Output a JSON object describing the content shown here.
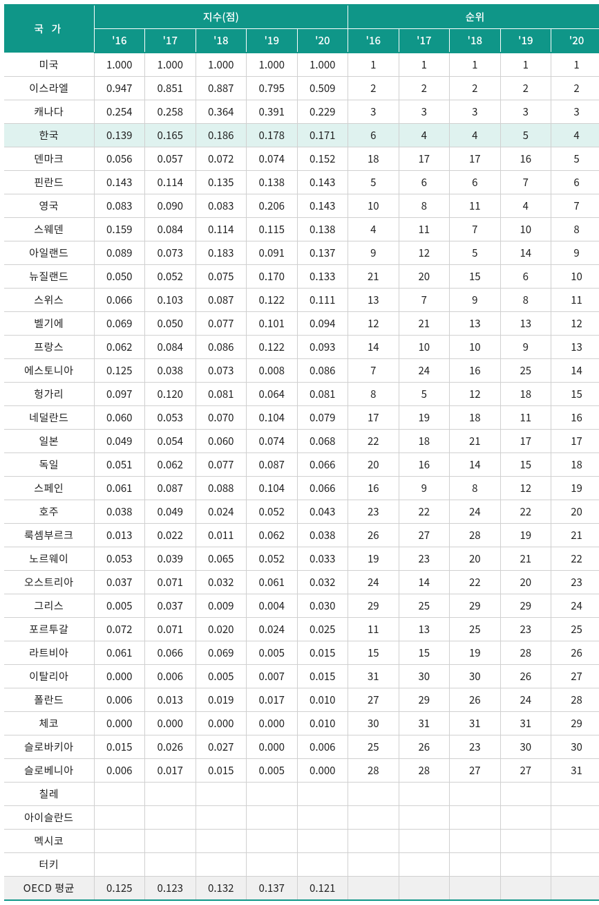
{
  "header": {
    "country": "국 가",
    "index_group": "지수(점)",
    "rank_group": "순위",
    "years": [
      "'16",
      "'17",
      "'18",
      "'19",
      "'20"
    ]
  },
  "highlight_row_index": 3,
  "rows": [
    {
      "c": "미국",
      "v": [
        "1.000",
        "1.000",
        "1.000",
        "1.000",
        "1.000",
        "1",
        "1",
        "1",
        "1",
        "1"
      ]
    },
    {
      "c": "이스라엘",
      "v": [
        "0.947",
        "0.851",
        "0.887",
        "0.795",
        "0.509",
        "2",
        "2",
        "2",
        "2",
        "2"
      ]
    },
    {
      "c": "캐나다",
      "v": [
        "0.254",
        "0.258",
        "0.364",
        "0.391",
        "0.229",
        "3",
        "3",
        "3",
        "3",
        "3"
      ]
    },
    {
      "c": "한국",
      "v": [
        "0.139",
        "0.165",
        "0.186",
        "0.178",
        "0.171",
        "6",
        "4",
        "4",
        "5",
        "4"
      ]
    },
    {
      "c": "덴마크",
      "v": [
        "0.056",
        "0.057",
        "0.072",
        "0.074",
        "0.152",
        "18",
        "17",
        "17",
        "16",
        "5"
      ]
    },
    {
      "c": "핀란드",
      "v": [
        "0.143",
        "0.114",
        "0.135",
        "0.138",
        "0.143",
        "5",
        "6",
        "6",
        "7",
        "6"
      ]
    },
    {
      "c": "영국",
      "v": [
        "0.083",
        "0.090",
        "0.083",
        "0.206",
        "0.143",
        "10",
        "8",
        "11",
        "4",
        "7"
      ]
    },
    {
      "c": "스웨덴",
      "v": [
        "0.159",
        "0.084",
        "0.114",
        "0.115",
        "0.138",
        "4",
        "11",
        "7",
        "10",
        "8"
      ]
    },
    {
      "c": "아일랜드",
      "v": [
        "0.089",
        "0.073",
        "0.183",
        "0.091",
        "0.137",
        "9",
        "12",
        "5",
        "14",
        "9"
      ]
    },
    {
      "c": "뉴질랜드",
      "v": [
        "0.050",
        "0.052",
        "0.075",
        "0.170",
        "0.133",
        "21",
        "20",
        "15",
        "6",
        "10"
      ]
    },
    {
      "c": "스위스",
      "v": [
        "0.066",
        "0.103",
        "0.087",
        "0.122",
        "0.111",
        "13",
        "7",
        "9",
        "8",
        "11"
      ]
    },
    {
      "c": "벨기에",
      "v": [
        "0.069",
        "0.050",
        "0.077",
        "0.101",
        "0.094",
        "12",
        "21",
        "13",
        "13",
        "12"
      ]
    },
    {
      "c": "프랑스",
      "v": [
        "0.062",
        "0.084",
        "0.086",
        "0.122",
        "0.093",
        "14",
        "10",
        "10",
        "9",
        "13"
      ]
    },
    {
      "c": "에스토니아",
      "v": [
        "0.125",
        "0.038",
        "0.073",
        "0.008",
        "0.086",
        "7",
        "24",
        "16",
        "25",
        "14"
      ]
    },
    {
      "c": "헝가리",
      "v": [
        "0.097",
        "0.120",
        "0.081",
        "0.064",
        "0.081",
        "8",
        "5",
        "12",
        "18",
        "15"
      ]
    },
    {
      "c": "네덜란드",
      "v": [
        "0.060",
        "0.053",
        "0.070",
        "0.104",
        "0.079",
        "17",
        "19",
        "18",
        "11",
        "16"
      ]
    },
    {
      "c": "일본",
      "v": [
        "0.049",
        "0.054",
        "0.060",
        "0.074",
        "0.068",
        "22",
        "18",
        "21",
        "17",
        "17"
      ]
    },
    {
      "c": "독일",
      "v": [
        "0.051",
        "0.062",
        "0.077",
        "0.087",
        "0.066",
        "20",
        "16",
        "14",
        "15",
        "18"
      ]
    },
    {
      "c": "스페인",
      "v": [
        "0.061",
        "0.087",
        "0.088",
        "0.104",
        "0.066",
        "16",
        "9",
        "8",
        "12",
        "19"
      ]
    },
    {
      "c": "호주",
      "v": [
        "0.038",
        "0.049",
        "0.024",
        "0.052",
        "0.043",
        "23",
        "22",
        "24",
        "22",
        "20"
      ]
    },
    {
      "c": "룩셈부르크",
      "v": [
        "0.013",
        "0.022",
        "0.011",
        "0.062",
        "0.038",
        "26",
        "27",
        "28",
        "19",
        "21"
      ]
    },
    {
      "c": "노르웨이",
      "v": [
        "0.053",
        "0.039",
        "0.065",
        "0.052",
        "0.033",
        "19",
        "23",
        "20",
        "21",
        "22"
      ]
    },
    {
      "c": "오스트리아",
      "v": [
        "0.037",
        "0.071",
        "0.032",
        "0.061",
        "0.032",
        "24",
        "14",
        "22",
        "20",
        "23"
      ]
    },
    {
      "c": "그리스",
      "v": [
        "0.005",
        "0.037",
        "0.009",
        "0.004",
        "0.030",
        "29",
        "25",
        "29",
        "29",
        "24"
      ]
    },
    {
      "c": "포르투갈",
      "v": [
        "0.072",
        "0.071",
        "0.020",
        "0.024",
        "0.025",
        "11",
        "13",
        "25",
        "23",
        "25"
      ]
    },
    {
      "c": "라트비아",
      "v": [
        "0.061",
        "0.066",
        "0.069",
        "0.005",
        "0.015",
        "15",
        "15",
        "19",
        "28",
        "26"
      ]
    },
    {
      "c": "이탈리아",
      "v": [
        "0.000",
        "0.006",
        "0.005",
        "0.007",
        "0.015",
        "31",
        "30",
        "30",
        "26",
        "27"
      ]
    },
    {
      "c": "폴란드",
      "v": [
        "0.006",
        "0.013",
        "0.019",
        "0.017",
        "0.010",
        "27",
        "29",
        "26",
        "24",
        "28"
      ]
    },
    {
      "c": "체코",
      "v": [
        "0.000",
        "0.000",
        "0.000",
        "0.000",
        "0.010",
        "30",
        "31",
        "31",
        "31",
        "29"
      ]
    },
    {
      "c": "슬로바키아",
      "v": [
        "0.015",
        "0.026",
        "0.027",
        "0.000",
        "0.006",
        "25",
        "26",
        "23",
        "30",
        "30"
      ]
    },
    {
      "c": "슬로베니아",
      "v": [
        "0.006",
        "0.017",
        "0.015",
        "0.005",
        "0.000",
        "28",
        "28",
        "27",
        "27",
        "31"
      ]
    },
    {
      "c": "칠레",
      "v": [
        "",
        "",
        "",
        "",
        "",
        "",
        "",
        "",
        "",
        ""
      ]
    },
    {
      "c": "아이슬란드",
      "v": [
        "",
        "",
        "",
        "",
        "",
        "",
        "",
        "",
        "",
        ""
      ]
    },
    {
      "c": "멕시코",
      "v": [
        "",
        "",
        "",
        "",
        "",
        "",
        "",
        "",
        "",
        ""
      ]
    },
    {
      "c": "터키",
      "v": [
        "",
        "",
        "",
        "",
        "",
        "",
        "",
        "",
        "",
        ""
      ]
    }
  ],
  "average": {
    "c": "OECD 평균",
    "v": [
      "0.125",
      "0.123",
      "0.132",
      "0.137",
      "0.121",
      "",
      "",
      "",
      "",
      ""
    ]
  },
  "colors": {
    "header_bg": "#0f9688",
    "header_text": "#ffffff",
    "border": "#d0d0d0",
    "highlight_bg": "#dff2ef",
    "avg_bg": "#f0f0f0",
    "text": "#222222"
  },
  "font_size_pt": 11
}
